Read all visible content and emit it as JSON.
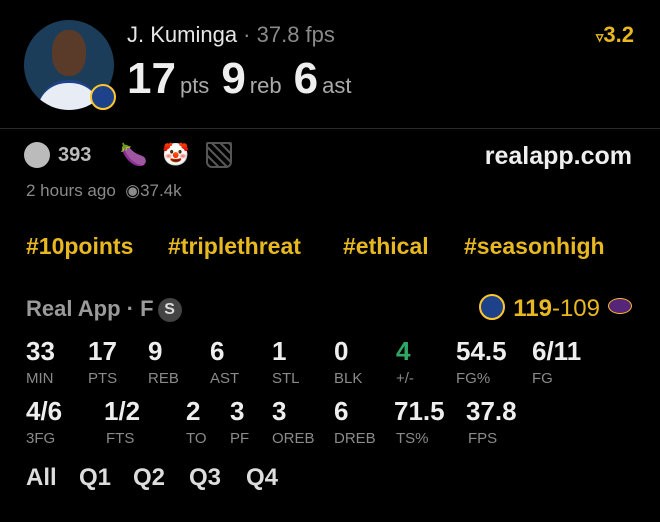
{
  "header": {
    "name": "J. Kuminga",
    "fps": "37.8 fps",
    "points": "17",
    "points_label": "pts",
    "rebounds": "9",
    "rebounds_label": "reb",
    "assists": "6",
    "assists_label": "ast",
    "rating": "3.2",
    "rating_icon": "arrow-icon"
  },
  "reactions": {
    "count": "393",
    "icons": [
      "smiley-icon",
      "eggplant-icon",
      "clown-icon",
      "basketball-hoop-icon"
    ]
  },
  "meta": {
    "time": "2 hours ago",
    "views": "37.4k"
  },
  "site": "realapp.com",
  "tags": [
    "#10points",
    "#triplethreat",
    "#ethical",
    "#seasonhigh"
  ],
  "game": {
    "source": "Real App · F",
    "badge": "S",
    "home_score": "119",
    "away_score": "109",
    "home_team": "Warriors",
    "away_team": "Lakers"
  },
  "stats_row1": [
    {
      "v": "33",
      "l": "MIN"
    },
    {
      "v": "17",
      "l": "PTS"
    },
    {
      "v": "9",
      "l": "REB"
    },
    {
      "v": "6",
      "l": "AST"
    },
    {
      "v": "1",
      "l": "STL"
    },
    {
      "v": "0",
      "l": "BLK"
    },
    {
      "v": "4",
      "l": "+/-"
    },
    {
      "v": "54.5",
      "l": "FG%"
    },
    {
      "v": "6/11",
      "l": "FG"
    }
  ],
  "stats_row2": [
    {
      "v": "4/6",
      "l": "3FG"
    },
    {
      "v": "1/2",
      "l": "FTS"
    },
    {
      "v": "2",
      "l": "TO"
    },
    {
      "v": "3",
      "l": "PF"
    },
    {
      "v": "3",
      "l": "OREB"
    },
    {
      "v": "6",
      "l": "DREB"
    },
    {
      "v": "71.5",
      "l": "TS%"
    },
    {
      "v": "37.8",
      "l": "FPS"
    }
  ],
  "tabs": [
    "All",
    "Q1",
    "Q2",
    "Q3",
    "Q4"
  ],
  "colors": {
    "accent": "#e8b820",
    "positive": "#2fa866",
    "background": "#000000"
  }
}
